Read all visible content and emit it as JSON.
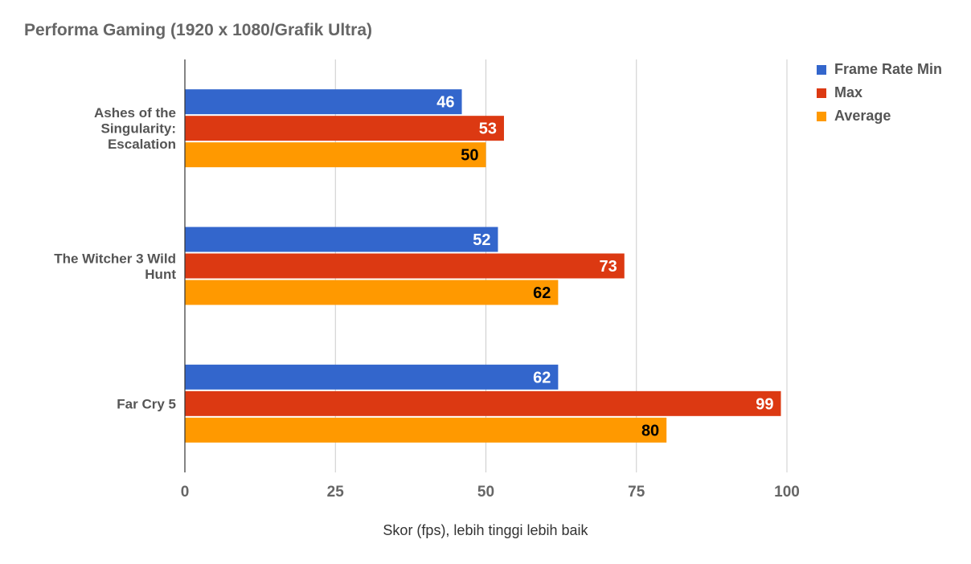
{
  "chart_data": {
    "type": "bar",
    "orientation": "horizontal",
    "title": "Performa Gaming (1920 x 1080/Grafik Ultra)",
    "xlabel": "Skor (fps), lebih tinggi lebih baik",
    "ylabel": "",
    "categories": [
      [
        "Ashes of the",
        "Singularity:",
        "Escalation"
      ],
      [
        "The Witcher 3 Wild",
        "Hunt"
      ],
      [
        "Far Cry 5"
      ]
    ],
    "series": [
      {
        "name": "Frame Rate Min",
        "color": "#3366cc",
        "label_color": "#ffffff",
        "values": [
          46,
          52,
          62
        ]
      },
      {
        "name": "Max",
        "color": "#dc3912",
        "label_color": "#ffffff",
        "values": [
          53,
          73,
          99
        ]
      },
      {
        "name": "Average",
        "color": "#ff9900",
        "label_color": "#000000",
        "values": [
          50,
          62,
          80
        ]
      }
    ],
    "xlim": [
      0,
      100
    ],
    "xticks": [
      0,
      25,
      50,
      75,
      100
    ],
    "grid": true,
    "legend_position": "top-right",
    "data_labels": true
  }
}
